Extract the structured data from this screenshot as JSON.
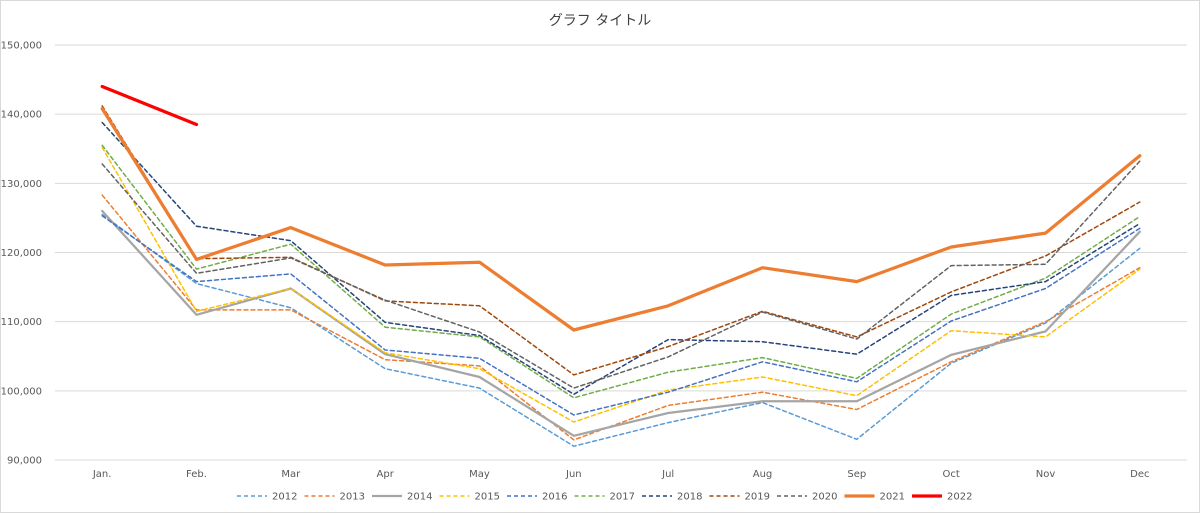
{
  "chart_data": {
    "type": "line",
    "title": "グラフ タイトル",
    "xlabel": "",
    "ylabel": "",
    "categories": [
      "Jan.",
      "Feb.",
      "Mar",
      "Apr",
      "May",
      "Jun",
      "Jul",
      "Aug",
      "Sep",
      "Oct",
      "Nov",
      "Dec"
    ],
    "ylim": [
      90000,
      150000
    ],
    "yticks": [
      90000,
      100000,
      110000,
      120000,
      130000,
      140000,
      150000
    ],
    "ytick_labels": [
      "90,000",
      "100,000",
      "110,000",
      "120,000",
      "130,000",
      "140,000",
      "150,000"
    ],
    "grid": "horizontal",
    "legend_position": "bottom",
    "series": [
      {
        "name": "2012",
        "color": "#5b9bd5",
        "style": "dashed",
        "values": [
          125500,
          115500,
          112000,
          103200,
          100400,
          92000,
          95400,
          98300,
          93000,
          104000,
          109800,
          120600
        ]
      },
      {
        "name": "2013",
        "color": "#ed7d31",
        "style": "dashed",
        "values": [
          128300,
          111700,
          111700,
          104500,
          103600,
          92900,
          97900,
          99800,
          97300,
          104200,
          110000,
          117800
        ]
      },
      {
        "name": "2014",
        "color": "#a5a5a5",
        "style": "solid",
        "values": [
          126000,
          111000,
          114800,
          105300,
          102000,
          93500,
          96800,
          98500,
          98500,
          105200,
          108600,
          123000
        ]
      },
      {
        "name": "2015",
        "color": "#ffc000",
        "style": "dashed",
        "values": [
          135200,
          111500,
          114800,
          105500,
          103200,
          95500,
          100100,
          102000,
          99300,
          108700,
          107800,
          117600
        ]
      },
      {
        "name": "2016",
        "color": "#4472c4",
        "style": "dashed",
        "values": [
          125300,
          115800,
          116900,
          105900,
          104700,
          96500,
          99800,
          104200,
          101300,
          110100,
          114800,
          123500
        ]
      },
      {
        "name": "2017",
        "color": "#70ad47",
        "style": "dashed",
        "values": [
          135500,
          117600,
          121200,
          109200,
          107800,
          99000,
          102700,
          104800,
          101800,
          111100,
          116300,
          125200
        ]
      },
      {
        "name": "2018",
        "color": "#264478",
        "style": "dashed",
        "values": [
          138800,
          123800,
          121700,
          109900,
          108000,
          99500,
          107400,
          107100,
          105300,
          113800,
          115800,
          124200
        ]
      },
      {
        "name": "2019",
        "color": "#9e480e",
        "style": "dashed",
        "values": [
          141200,
          119100,
          119300,
          113000,
          112300,
          102300,
          106400,
          111500,
          107800,
          114300,
          119500,
          127300
        ]
      },
      {
        "name": "2020",
        "color": "#636363",
        "style": "dashed",
        "values": [
          132800,
          117000,
          119200,
          113100,
          108500,
          100400,
          104900,
          111400,
          107500,
          118100,
          118300,
          133200
        ]
      },
      {
        "name": "2021",
        "color": "#ed7d31",
        "style": "solid-thick",
        "values": [
          140800,
          119000,
          123600,
          118200,
          118600,
          108800,
          112300,
          117800,
          115800,
          120800,
          122800,
          134000
        ]
      },
      {
        "name": "2022",
        "color": "#ff0000",
        "style": "solid-thick",
        "values": [
          144000,
          138500,
          null,
          null,
          null,
          null,
          null,
          null,
          null,
          null,
          null,
          null
        ]
      }
    ]
  }
}
